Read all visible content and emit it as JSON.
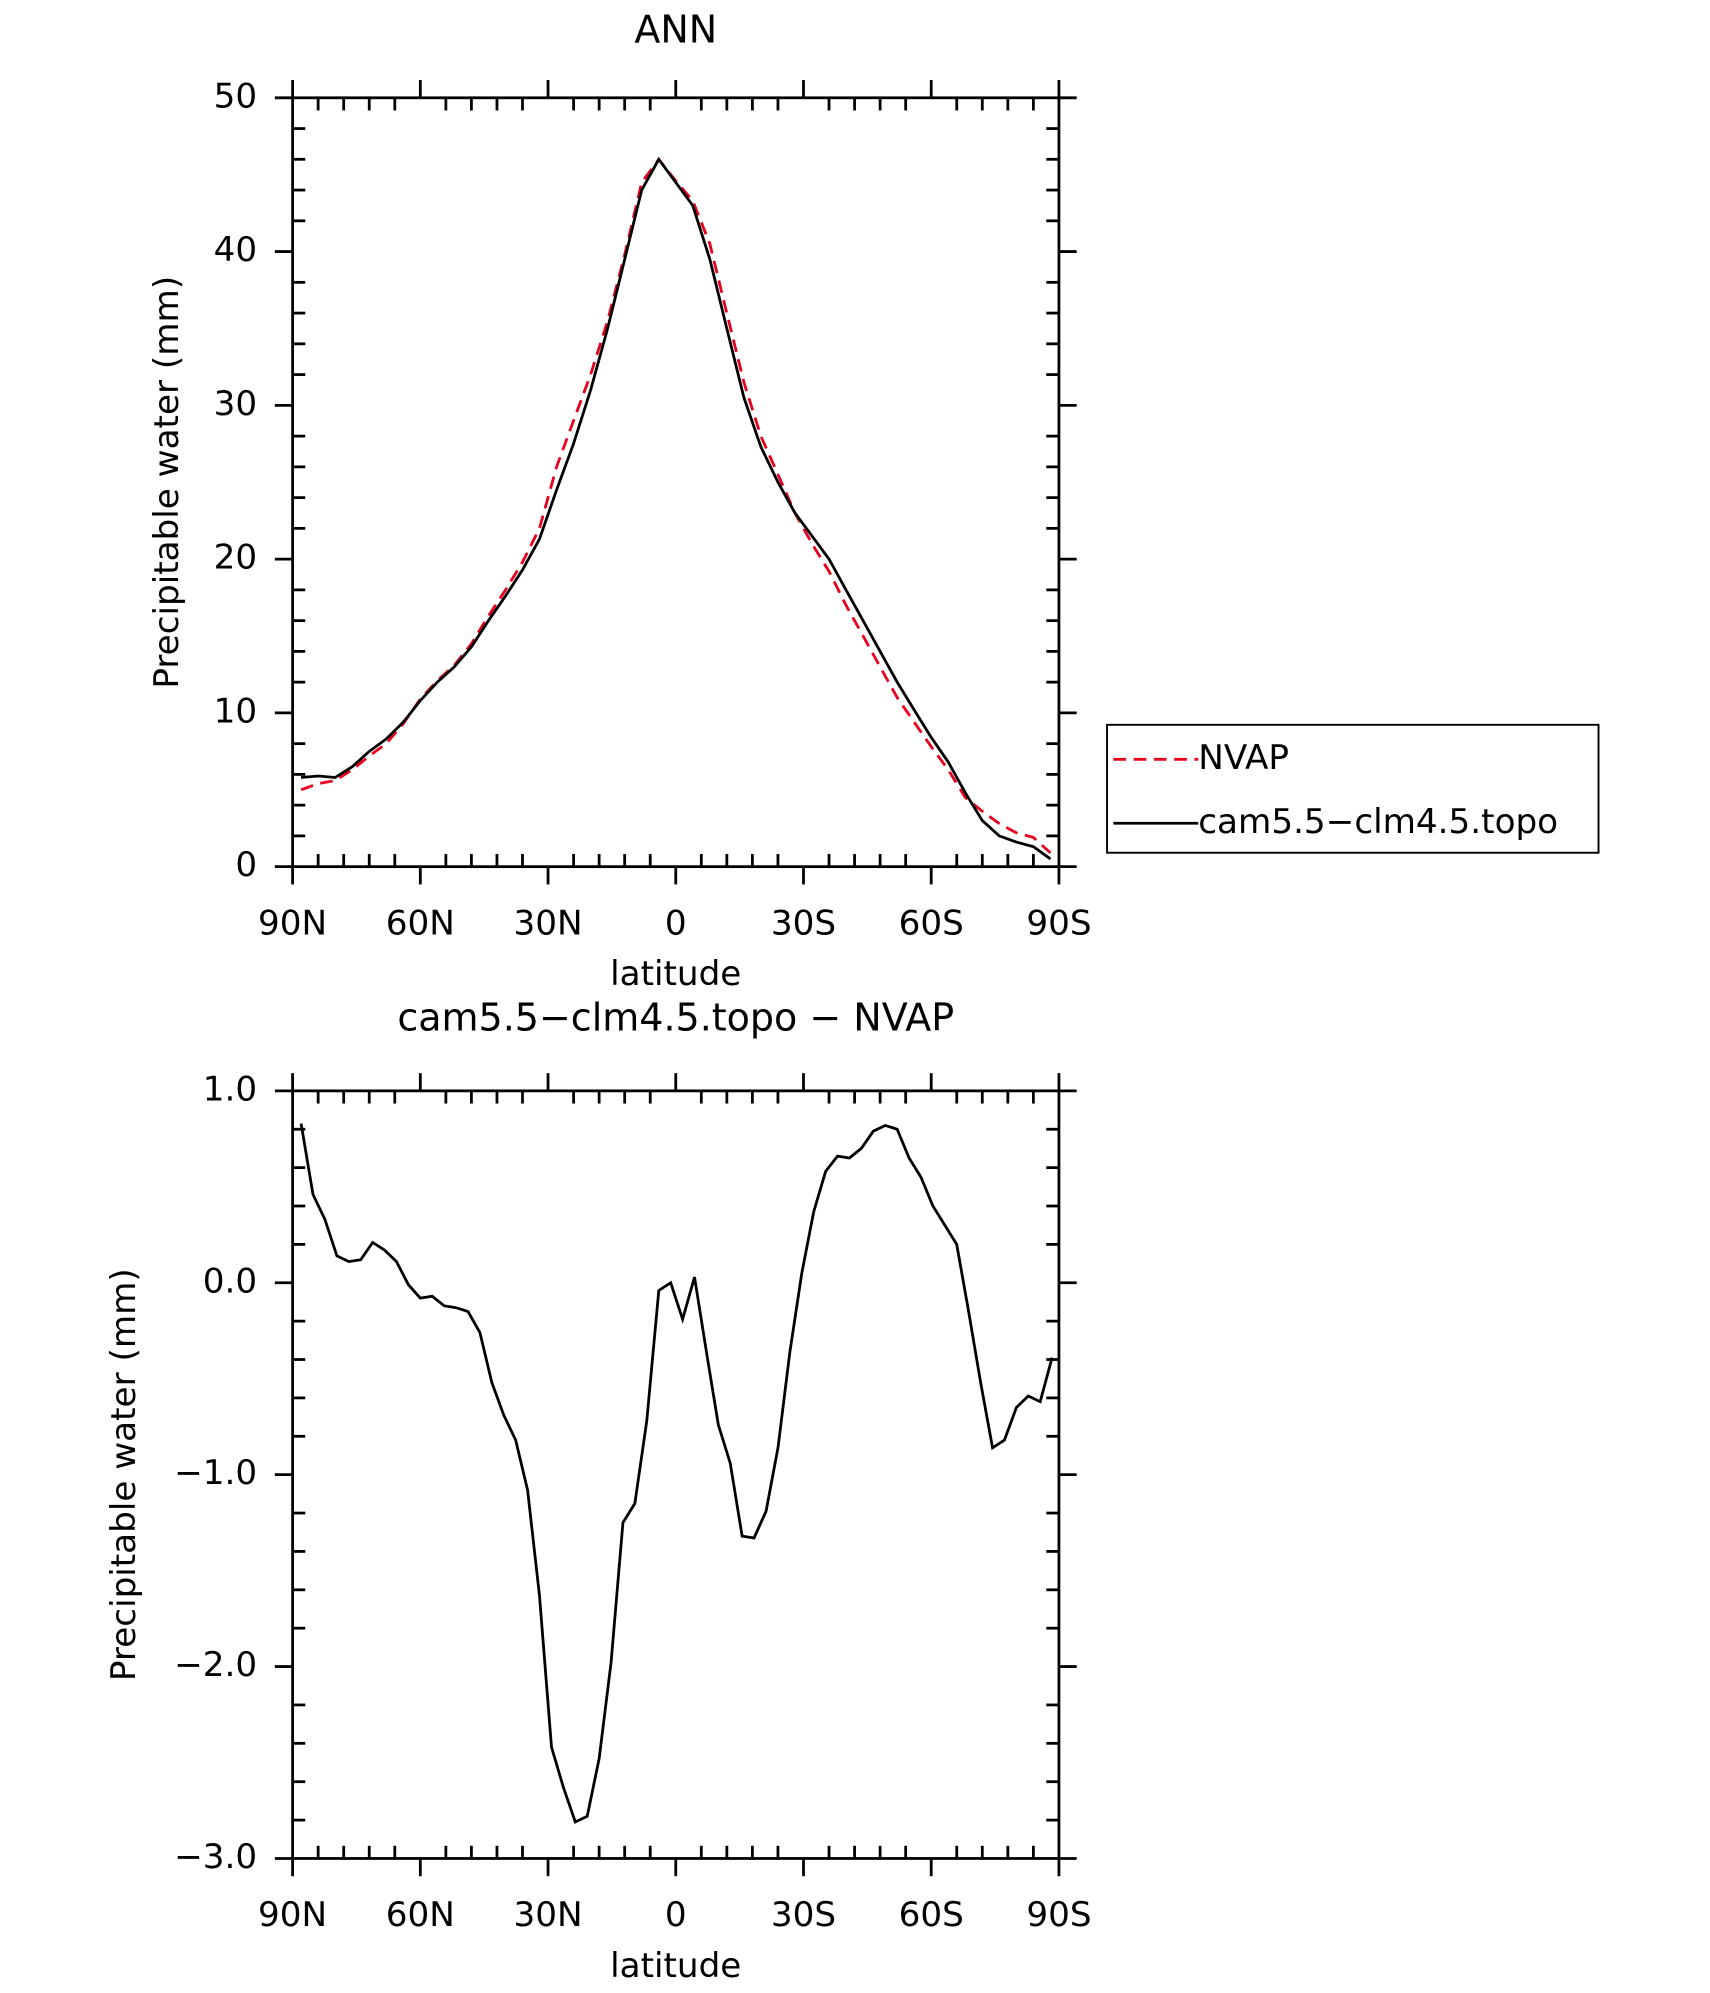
{
  "chart_data": [
    {
      "type": "line",
      "title": "ANN",
      "xlabel": "latitude",
      "ylabel": "Precipitable water (mm)",
      "x": [
        88,
        84,
        80,
        76,
        72,
        68,
        64,
        60,
        56,
        52,
        48,
        44,
        40,
        36,
        32,
        28,
        24,
        20,
        16,
        12,
        8,
        4,
        0,
        -4,
        -8,
        -12,
        -16,
        -20,
        -24,
        -28,
        -32,
        -36,
        -40,
        -44,
        -48,
        -52,
        -56,
        -60,
        -64,
        -68,
        -72,
        -76,
        -80,
        -84,
        -88
      ],
      "series": [
        {
          "name": "NVAP",
          "color": "#e8001c",
          "dash": "dashed",
          "values": [
            5.0,
            5.4,
            5.6,
            6.3,
            7.2,
            8.0,
            9.3,
            10.9,
            12.1,
            13.1,
            14.5,
            16.3,
            18.0,
            19.8,
            22.0,
            26.0,
            29.0,
            32.0,
            35.5,
            39.8,
            44.5,
            46.0,
            44.6,
            43.3,
            40.5,
            36.0,
            31.5,
            28.0,
            25.5,
            23.0,
            21.0,
            19.2,
            17.0,
            15.0,
            13.0,
            11.0,
            9.4,
            7.8,
            6.3,
            4.5,
            3.6,
            2.8,
            2.2,
            1.9,
            0.9
          ]
        },
        {
          "name": "cam5.5−clm4.5.topo",
          "color": "#000000",
          "dash": "solid",
          "values": [
            5.8,
            5.9,
            5.8,
            6.5,
            7.5,
            8.3,
            9.4,
            10.8,
            12.0,
            13.0,
            14.3,
            16.0,
            17.6,
            19.3,
            21.3,
            24.5,
            27.5,
            31.0,
            35.0,
            39.5,
            44.0,
            46.0,
            44.5,
            43.0,
            39.5,
            35.0,
            30.5,
            27.3,
            25.0,
            23.0,
            21.5,
            20.0,
            18.0,
            16.0,
            14.0,
            12.0,
            10.2,
            8.4,
            6.8,
            4.8,
            3.0,
            2.0,
            1.6,
            1.3,
            0.5
          ]
        }
      ],
      "xlim": [
        90,
        -90
      ],
      "xticks": [
        {
          "value": 90,
          "label": "90N"
        },
        {
          "value": 60,
          "label": "60N"
        },
        {
          "value": 30,
          "label": "30N"
        },
        0,
        {
          "value": -30,
          "label": "30S"
        },
        {
          "value": -60,
          "label": "60S"
        },
        {
          "value": -90,
          "label": "90S"
        }
      ],
      "ylim": [
        0,
        50
      ],
      "yticks": [
        0,
        10,
        20,
        30,
        40,
        50
      ],
      "legend": "right"
    },
    {
      "type": "line",
      "title": "cam5.5−clm4.5.topo − NVAP",
      "xlabel": "latitude",
      "ylabel": "Precipitable water (mm)",
      "x": [
        88,
        85.2,
        82.4,
        79.6,
        76.8,
        74,
        71.2,
        68.4,
        65.6,
        62.8,
        60,
        57.2,
        54.4,
        51.6,
        48.8,
        46,
        43.2,
        40.4,
        37.6,
        34.8,
        32,
        29.2,
        26.4,
        23.6,
        20.8,
        18,
        15.2,
        12.4,
        9.6,
        6.8,
        4,
        1.2,
        -1.6,
        -4.4,
        -7.2,
        -10,
        -12.8,
        -15.6,
        -18.4,
        -21.2,
        -24,
        -26.8,
        -29.6,
        -32.4,
        -35.2,
        -38,
        -40.8,
        -43.6,
        -46.4,
        -49.2,
        -52,
        -54.8,
        -57.6,
        -60.4,
        -63.2,
        -66,
        -68.8,
        -71.6,
        -74.4,
        -77.2,
        -80,
        -82.8,
        -85.6,
        -88.4
      ],
      "series": [
        {
          "color": "#000000",
          "dash": "solid",
          "values": [
            0.83,
            0.46,
            0.33,
            0.14,
            0.11,
            0.12,
            0.21,
            0.17,
            0.11,
            -0.01,
            -0.08,
            -0.07,
            -0.12,
            -0.13,
            -0.15,
            -0.26,
            -0.52,
            -0.69,
            -0.82,
            -1.08,
            -1.63,
            -2.42,
            -2.63,
            -2.81,
            -2.78,
            -2.48,
            -1.98,
            -1.25,
            -1.15,
            -0.72,
            -0.04,
            0.0,
            -0.19,
            0.03,
            -0.36,
            -0.74,
            -0.94,
            -1.32,
            -1.33,
            -1.19,
            -0.86,
            -0.36,
            0.05,
            0.37,
            0.58,
            0.66,
            0.65,
            0.7,
            0.79,
            0.82,
            0.8,
            0.65,
            0.55,
            0.4,
            0.3,
            0.2,
            -0.15,
            -0.52,
            -0.86,
            -0.82,
            -0.65,
            -0.59,
            -0.62,
            -0.39
          ]
        }
      ],
      "xlim": [
        90,
        -90
      ],
      "xticks": [
        {
          "value": 90,
          "label": "90N"
        },
        {
          "value": 60,
          "label": "60N"
        },
        {
          "value": 30,
          "label": "30N"
        },
        0,
        {
          "value": -30,
          "label": "30S"
        },
        {
          "value": -60,
          "label": "60S"
        },
        {
          "value": -90,
          "label": "90S"
        }
      ],
      "ylim": [
        -3,
        1
      ],
      "yticks": [
        {
          "value": -3,
          "label": "−3.0"
        },
        {
          "value": -2,
          "label": "−2.0"
        },
        {
          "value": -1,
          "label": "−1.0"
        },
        {
          "value": 0,
          "label": "0.0"
        },
        {
          "value": 1,
          "label": "1.0"
        }
      ]
    }
  ]
}
